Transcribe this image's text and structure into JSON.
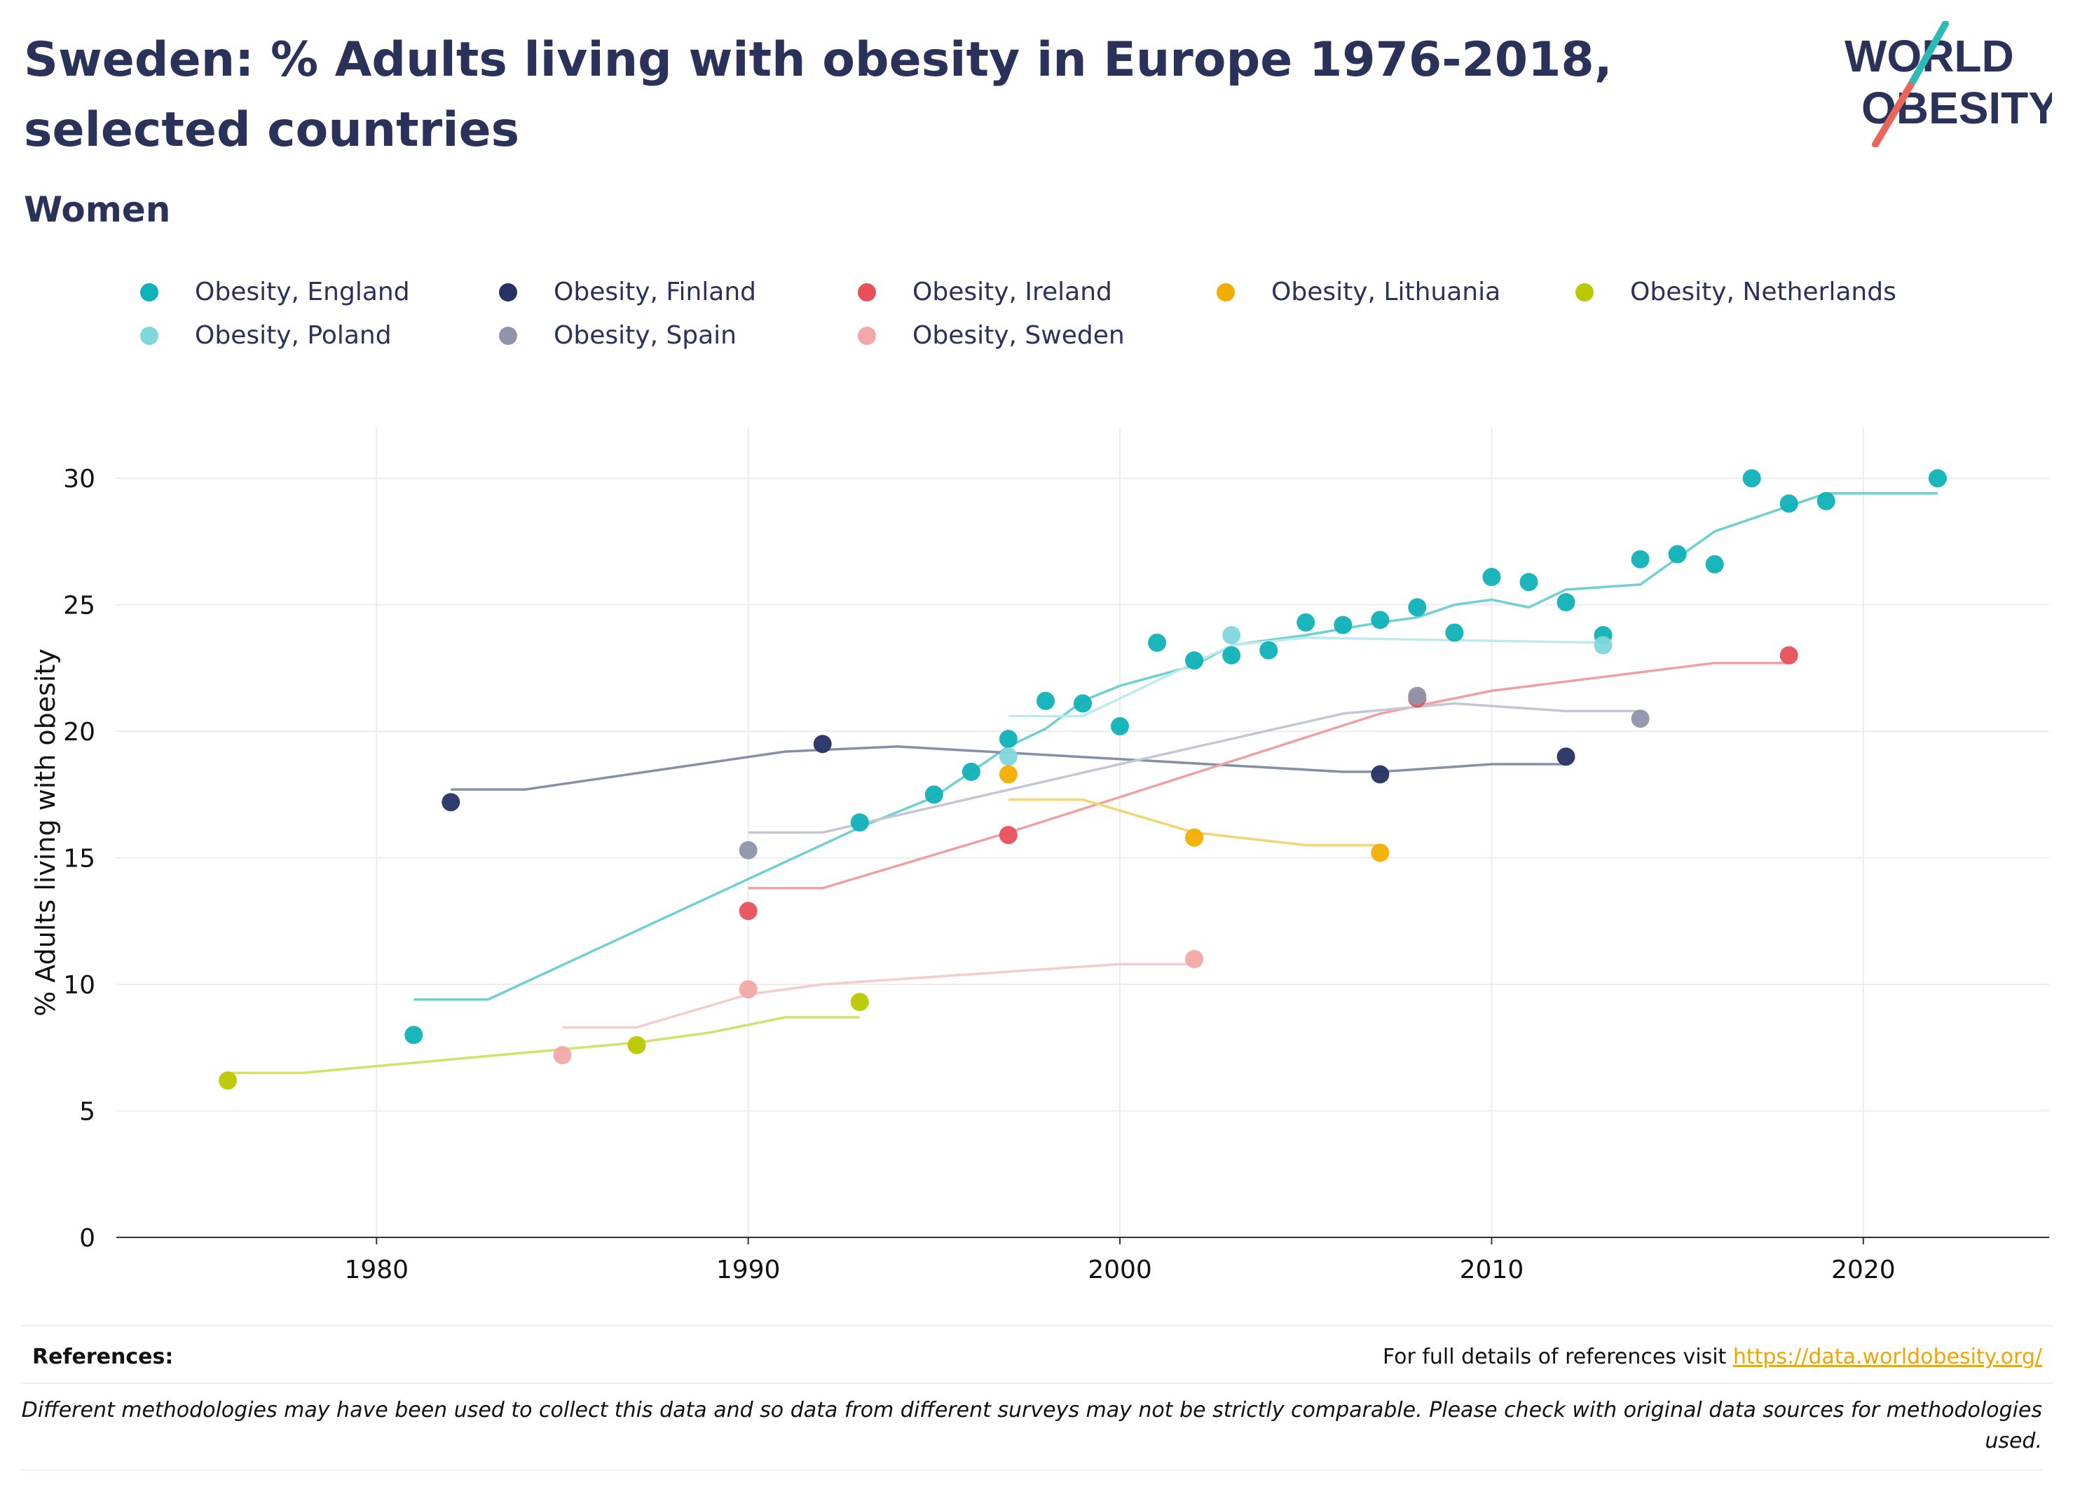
{
  "header": {
    "title": "Sweden: % Adults living with obesity in Europe 1976-2018, selected countries",
    "subtitle": "Women"
  },
  "logo": {
    "line1": "WORLD",
    "line2": "OBESITY",
    "color_text": "#2b3259",
    "color_slash_top": "#2bbab5",
    "color_slash_bottom": "#e8665a"
  },
  "footer": {
    "references_label": "References:",
    "references_text": "For full details of references visit ",
    "references_link": "https://data.worldobesity.org/",
    "disclaimer": "Different methodologies may have been used to collect this data and so data from different surveys may not be strictly comparable. Please check with original data sources for methodologies used."
  },
  "chart_data": {
    "type": "scatter",
    "title": "Sweden: % Adults living with obesity in Europe 1976-2018, selected countries",
    "subtitle": "Women",
    "xlabel": "",
    "ylabel": "% Adults living with obesity",
    "xlim": [
      1973,
      2025
    ],
    "ylim": [
      0,
      32
    ],
    "xticks": [
      1980,
      1990,
      2000,
      2010,
      2020
    ],
    "yticks": [
      0,
      5,
      10,
      15,
      20,
      25,
      30
    ],
    "grid": true,
    "legend_position": "top",
    "series": [
      {
        "name": "Obesity, England",
        "color": "#0fb2b8",
        "line_color": "#6fd0d3",
        "points": [
          [
            1981,
            8.0
          ],
          [
            1993,
            16.4
          ],
          [
            1995,
            17.5
          ],
          [
            1996,
            18.4
          ],
          [
            1997,
            19.7
          ],
          [
            1998,
            21.2
          ],
          [
            1999,
            21.1
          ],
          [
            2000,
            20.2
          ],
          [
            2001,
            23.5
          ],
          [
            2002,
            22.8
          ],
          [
            2003,
            23.0
          ],
          [
            2004,
            23.2
          ],
          [
            2005,
            24.3
          ],
          [
            2006,
            24.2
          ],
          [
            2007,
            24.4
          ],
          [
            2008,
            24.9
          ],
          [
            2009,
            23.9
          ],
          [
            2010,
            26.1
          ],
          [
            2011,
            25.9
          ],
          [
            2012,
            25.1
          ],
          [
            2013,
            23.8
          ],
          [
            2014,
            26.8
          ],
          [
            2015,
            27.0
          ],
          [
            2016,
            26.6
          ],
          [
            2017,
            30.0
          ],
          [
            2018,
            29.0
          ],
          [
            2019,
            29.1
          ],
          [
            2022,
            30.0
          ]
        ],
        "trend": [
          [
            1981,
            9.4
          ],
          [
            1983,
            9.4
          ],
          [
            1993,
            16.2
          ],
          [
            1995,
            17.4
          ],
          [
            1997,
            19.4
          ],
          [
            1998,
            20.1
          ],
          [
            1999,
            21.2
          ],
          [
            2000,
            21.8
          ],
          [
            2002,
            22.6
          ],
          [
            2003,
            23.4
          ],
          [
            2005,
            23.8
          ],
          [
            2007,
            24.3
          ],
          [
            2008,
            24.5
          ],
          [
            2009,
            25.0
          ],
          [
            2010,
            25.2
          ],
          [
            2011,
            24.9
          ],
          [
            2012,
            25.6
          ],
          [
            2014,
            25.8
          ],
          [
            2016,
            27.9
          ],
          [
            2019,
            29.4
          ],
          [
            2022,
            29.4
          ]
        ]
      },
      {
        "name": "Obesity, Finland",
        "color": "#263264",
        "line_color": "#8590a6",
        "points": [
          [
            1982,
            17.2
          ],
          [
            1992,
            19.5
          ],
          [
            2007,
            18.3
          ],
          [
            2012,
            19.0
          ]
        ],
        "trend": [
          [
            1982,
            17.7
          ],
          [
            1984,
            17.7
          ],
          [
            1991,
            19.2
          ],
          [
            1994,
            19.4
          ],
          [
            2000,
            18.9
          ],
          [
            2006,
            18.4
          ],
          [
            2007,
            18.4
          ],
          [
            2009,
            18.6
          ],
          [
            2010,
            18.7
          ],
          [
            2012,
            18.7
          ]
        ]
      },
      {
        "name": "Obesity, Ireland",
        "color": "#e8505b",
        "line_color": "#efa0a5",
        "points": [
          [
            1990,
            12.9
          ],
          [
            1997,
            15.9
          ],
          [
            2008,
            21.3
          ],
          [
            2018,
            23.0
          ]
        ],
        "trend": [
          [
            1990,
            13.8
          ],
          [
            1992,
            13.8
          ],
          [
            1997,
            16.0
          ],
          [
            2000,
            17.4
          ],
          [
            2007,
            20.7
          ],
          [
            2010,
            21.6
          ],
          [
            2016,
            22.7
          ],
          [
            2018,
            22.7
          ]
        ]
      },
      {
        "name": "Obesity, Lithuania",
        "color": "#f2ae00",
        "line_color": "#f6d373",
        "points": [
          [
            1997,
            18.3
          ],
          [
            2002,
            15.8
          ],
          [
            2007,
            15.2
          ]
        ],
        "trend": [
          [
            1997,
            17.3
          ],
          [
            1999,
            17.3
          ],
          [
            2002,
            16.0
          ],
          [
            2005,
            15.5
          ],
          [
            2007,
            15.5
          ]
        ]
      },
      {
        "name": "Obesity, Netherlands",
        "color": "#b8c900",
        "line_color": "#d5e06a",
        "points": [
          [
            1976,
            6.2
          ],
          [
            1987,
            7.6
          ],
          [
            1993,
            9.3
          ]
        ],
        "trend": [
          [
            1976,
            6.5
          ],
          [
            1978,
            6.5
          ],
          [
            1987,
            7.7
          ],
          [
            1989,
            8.1
          ],
          [
            1991,
            8.7
          ],
          [
            1993,
            8.7
          ]
        ]
      },
      {
        "name": "Obesity, Poland",
        "color": "#7fd7da",
        "line_color": "#bfeaec",
        "points": [
          [
            1997,
            19.0
          ],
          [
            2003,
            23.8
          ],
          [
            2013,
            23.4
          ]
        ],
        "trend": [
          [
            1997,
            20.6
          ],
          [
            1999,
            20.6
          ],
          [
            2003,
            23.4
          ],
          [
            2005,
            23.7
          ],
          [
            2013,
            23.5
          ]
        ]
      },
      {
        "name": "Obesity, Spain",
        "color": "#8e95a9",
        "line_color": "#c3c7d3",
        "points": [
          [
            1990,
            15.3
          ],
          [
            2008,
            21.4
          ],
          [
            2014,
            20.5
          ]
        ],
        "trend": [
          [
            1990,
            16.0
          ],
          [
            1992,
            16.0
          ],
          [
            2000,
            18.7
          ],
          [
            2006,
            20.7
          ],
          [
            2009,
            21.1
          ],
          [
            2012,
            20.8
          ],
          [
            2014,
            20.8
          ]
        ]
      },
      {
        "name": "Obesity, Sweden",
        "color": "#f2a8a8",
        "line_color": "#f5cccc",
        "points": [
          [
            1985,
            7.2
          ],
          [
            1990,
            9.8
          ],
          [
            2002,
            11.0
          ]
        ],
        "trend": [
          [
            1985,
            8.3
          ],
          [
            1987,
            8.3
          ],
          [
            1990,
            9.6
          ],
          [
            1992,
            10.0
          ],
          [
            2000,
            10.8
          ],
          [
            2002,
            10.8
          ]
        ]
      }
    ]
  }
}
